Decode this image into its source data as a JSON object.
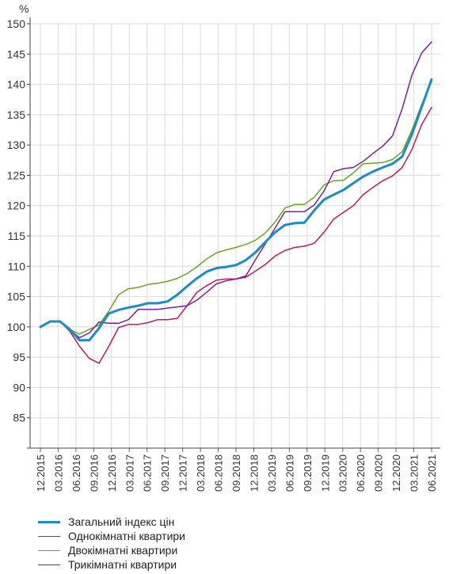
{
  "chart_data": {
    "type": "line",
    "ylabel": "%",
    "ylim": [
      80,
      150
    ],
    "yticks": [
      85,
      90,
      95,
      100,
      105,
      110,
      115,
      120,
      125,
      130,
      135,
      140,
      145,
      150
    ],
    "xlabels": [
      "12.2015",
      "03.2016",
      "06.2016",
      "09.2016",
      "12.2016",
      "03.2017",
      "06.2017",
      "09.2017",
      "12.2017",
      "03.2018",
      "06.2018",
      "09.2018",
      "12.2018",
      "03.2019",
      "06.2019",
      "09.2019",
      "12.2019",
      "03.2020",
      "06.2020",
      "09.2020",
      "12.2020",
      "03.2021",
      "06.2021"
    ],
    "grid": true,
    "legend_position": "bottom",
    "series": [
      {
        "name": "Загальний індекс цін",
        "color": "#1a8cc7",
        "width": 3,
        "values": [
          100.0,
          100.9,
          100.9,
          99.6,
          97.8,
          97.8,
          99.8,
          102.2,
          102.8,
          103.2,
          103.5,
          103.9,
          103.9,
          104.2,
          105.3,
          106.7,
          108.0,
          109.1,
          109.7,
          109.9,
          110.2,
          111.0,
          112.3,
          114.0,
          115.6,
          116.8,
          117.1,
          117.2,
          119.2,
          121.0,
          121.8,
          122.6,
          123.7,
          124.8,
          125.6,
          126.3,
          126.9,
          128.1,
          131.8,
          136.3,
          140.8
        ]
      },
      {
        "name": "Однокімнатні квартири",
        "color": "#c2185b",
        "width": 1.5,
        "values": [
          100.0,
          100.9,
          100.9,
          99.3,
          96.8,
          94.8,
          94.0,
          96.8,
          99.9,
          100.4,
          100.4,
          100.7,
          101.2,
          101.2,
          101.4,
          103.5,
          105.7,
          106.8,
          107.7,
          107.9,
          107.9,
          108.2,
          109.2,
          110.3,
          111.7,
          112.6,
          113.1,
          113.3,
          113.8,
          115.6,
          117.8,
          118.9,
          120.0,
          121.8,
          123.0,
          124.1,
          124.9,
          126.3,
          129.3,
          133.4,
          136.2
        ]
      },
      {
        "name": "Двокімнатні квартири",
        "color": "#6aa521",
        "width": 1.5,
        "values": [
          100.0,
          100.9,
          100.9,
          99.6,
          98.8,
          99.6,
          100.3,
          102.6,
          105.3,
          106.3,
          106.5,
          107.0,
          107.2,
          107.5,
          108.0,
          108.8,
          109.9,
          111.2,
          112.2,
          112.7,
          113.1,
          113.6,
          114.3,
          115.5,
          117.3,
          119.6,
          120.2,
          120.2,
          121.4,
          123.4,
          124.1,
          124.2,
          125.4,
          126.9,
          127.0,
          127.1,
          127.6,
          128.9,
          132.5,
          136.7,
          140.6
        ]
      },
      {
        "name": "Трикімнатні квартири",
        "color": "#7b1fa2",
        "width": 1.5,
        "values": [
          100.0,
          100.9,
          100.9,
          99.6,
          98.2,
          99.0,
          100.8,
          100.6,
          100.6,
          101.2,
          102.9,
          102.9,
          102.9,
          103.1,
          103.3,
          103.5,
          104.4,
          105.7,
          107.1,
          107.6,
          107.9,
          108.4,
          111.1,
          113.7,
          116.3,
          119.0,
          119.0,
          119.0,
          120.1,
          122.4,
          125.6,
          126.1,
          126.3,
          127.3,
          128.6,
          129.8,
          131.5,
          136.0,
          141.6,
          145.2,
          147.0
        ]
      }
    ]
  }
}
